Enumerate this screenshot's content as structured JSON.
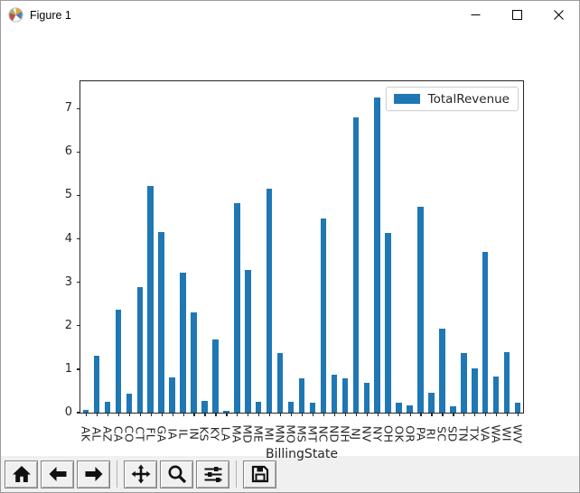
{
  "window": {
    "title": "Figure 1"
  },
  "chart_data": {
    "type": "bar",
    "title": "",
    "xlabel": "BillingState",
    "ylabel": "",
    "legend_position": "upper right",
    "legend": [
      {
        "label": "TotalRevenue",
        "color": "#1f77b4"
      }
    ],
    "bar_color": "#1f77b4",
    "grid": false,
    "ylim": [
      0,
      7.67
    ],
    "yticks": [
      0,
      1,
      2,
      3,
      4,
      5,
      6,
      7
    ],
    "categories": [
      "AK",
      "AL",
      "AZ",
      "CA",
      "CO",
      "CT",
      "FL",
      "GA",
      "IA",
      "IL",
      "IN",
      "KS",
      "KY",
      "LA",
      "MA",
      "MD",
      "ME",
      "MI",
      "MN",
      "MO",
      "MS",
      "MT",
      "NC",
      "ND",
      "NH",
      "NJ",
      "NV",
      "NY",
      "OH",
      "OK",
      "OR",
      "PA",
      "RI",
      "SC",
      "SD",
      "TN",
      "TX",
      "VA",
      "WA",
      "WI",
      "WV"
    ],
    "values": [
      0.06,
      1.31,
      0.26,
      2.38,
      0.44,
      2.91,
      5.24,
      4.17,
      0.82,
      3.23,
      2.31,
      0.27,
      1.7,
      0.04,
      4.84,
      3.3,
      0.26,
      5.18,
      1.37,
      0.26,
      0.8,
      0.23,
      4.5,
      0.88,
      0.8,
      6.84,
      0.7,
      7.3,
      4.16,
      0.24,
      0.16,
      4.77,
      0.46,
      1.94,
      0.15,
      1.37,
      1.03,
      3.72,
      0.84,
      1.41,
      0.22
    ]
  },
  "toolbar": {
    "buttons": [
      {
        "name": "home"
      },
      {
        "name": "back"
      },
      {
        "name": "forward"
      },
      {
        "name": "pan"
      },
      {
        "name": "zoom"
      },
      {
        "name": "configure-subplots"
      },
      {
        "name": "save"
      }
    ],
    "groups": [
      3,
      3,
      1
    ]
  }
}
